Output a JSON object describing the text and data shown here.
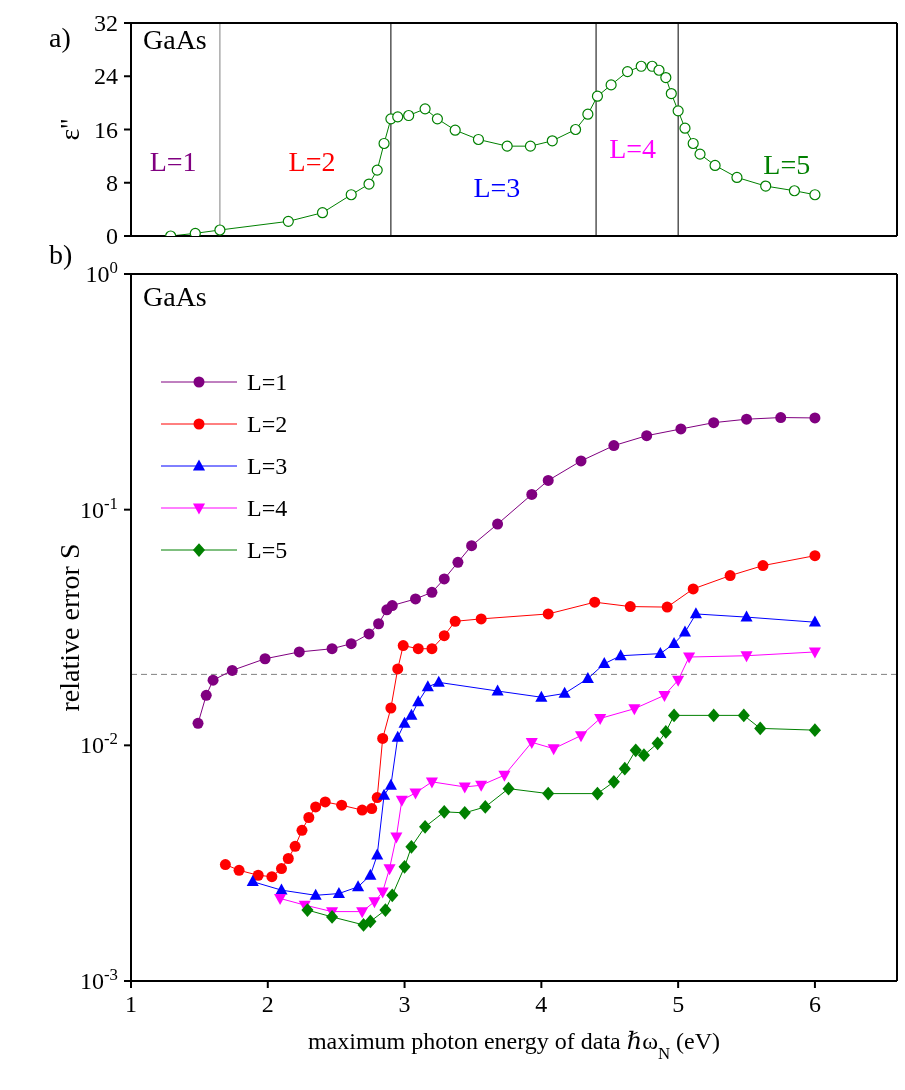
{
  "chart_data": [
    {
      "type": "line",
      "ylabel": "ε''",
      "marker": "circle",
      "tick_labels": "y",
      "xlim": [
        1,
        6.6
      ],
      "xticks": [
        1,
        2,
        3,
        4,
        5,
        6
      ],
      "ylim": [
        0,
        32
      ],
      "yticks": [
        0,
        8,
        16,
        24,
        32
      ],
      "annotations": [
        "a)",
        "GaAs",
        "L=1",
        "L=2",
        "L=3",
        "L=4",
        "L=5"
      ],
      "ref_lines": [
        {
          "axis": "x",
          "value": 1.65,
          "color": "#808080"
        },
        {
          "axis": "x",
          "value": 2.9,
          "color": "#000000"
        },
        {
          "axis": "x",
          "value": 4.4,
          "color": "#000000"
        },
        {
          "axis": "x",
          "value": 5.0,
          "color": "#000000"
        }
      ],
      "series": [
        {
          "color": "#008000",
          "x": [
            1.29,
            1.47,
            1.65,
            2.15,
            2.4,
            2.61,
            2.74,
            2.8,
            2.85,
            2.9,
            2.95,
            3.03,
            3.15,
            3.24,
            3.37,
            3.54,
            3.75,
            3.92,
            4.08,
            4.25,
            4.34,
            4.41,
            4.51,
            4.63,
            4.73,
            4.81,
            4.86,
            4.91,
            4.95,
            5.0,
            5.05,
            5.11,
            5.16,
            5.27,
            5.43,
            5.64,
            5.85,
            6.0
          ],
          "values": [
            0,
            0.4,
            0.9,
            2.2,
            3.5,
            6.2,
            7.8,
            9.9,
            13.9,
            17.6,
            17.9,
            18.1,
            19.1,
            17.6,
            15.9,
            14.5,
            13.5,
            13.5,
            14.3,
            16.0,
            18.3,
            21.0,
            22.7,
            24.7,
            25.5,
            25.5,
            24.9,
            23.8,
            21.4,
            18.8,
            16.2,
            13.9,
            12.3,
            10.6,
            8.8,
            7.5,
            6.8,
            6.2
          ]
        }
      ]
    },
    {
      "type": "line",
      "xlabel": "maximum photon energy of data ℏω$_{N}$ (eV)",
      "ylabel": "relative error S",
      "log": "y",
      "legend": "top left",
      "xlim": [
        1,
        6.6
      ],
      "xticks": [
        1,
        2,
        3,
        4,
        5,
        6
      ],
      "ylim": [
        0.001,
        1
      ],
      "yticks": [
        {
          "value": 0.001,
          "label": "10$^{-3}$"
        },
        {
          "value": 0.01,
          "label": "10$^{-2}$"
        },
        {
          "value": 0.1,
          "label": "10$^{-1}$"
        },
        {
          "value": 1,
          "label": "10$^{0}$"
        }
      ],
      "annotations": [
        "b)",
        "GaAs"
      ],
      "ref_lines": [
        {
          "axis": "y",
          "value": 0.02,
          "color": "#808080",
          "line_style": "dashed"
        }
      ],
      "series": [
        {
          "name": "L=1",
          "color": "#800080",
          "marker": "circle",
          "x": [
            1.49,
            1.55,
            1.6,
            1.74,
            1.98,
            2.23,
            2.47,
            2.61,
            2.74,
            2.81,
            2.87,
            2.91,
            3.08,
            3.2,
            3.29,
            3.39,
            3.49,
            3.68,
            3.93,
            4.05,
            4.29,
            4.53,
            4.77,
            5.02,
            5.26,
            5.5,
            5.75,
            6.0
          ],
          "values": [
            0.0124,
            0.0163,
            0.0189,
            0.0208,
            0.0233,
            0.0249,
            0.0257,
            0.027,
            0.0297,
            0.0328,
            0.0376,
            0.0392,
            0.0418,
            0.0446,
            0.0508,
            0.0598,
            0.0703,
            0.0869,
            0.116,
            0.133,
            0.161,
            0.187,
            0.206,
            0.22,
            0.234,
            0.242,
            0.246,
            0.245
          ]
        },
        {
          "name": "L=2",
          "color": "#ff0000",
          "marker": "circle",
          "x": [
            1.69,
            1.79,
            1.93,
            2.03,
            2.1,
            2.15,
            2.2,
            2.25,
            2.3,
            2.35,
            2.42,
            2.54,
            2.69,
            2.76,
            2.8,
            2.84,
            2.9,
            2.95,
            2.99,
            3.1,
            3.2,
            3.29,
            3.37,
            3.56,
            4.05,
            4.39,
            4.65,
            4.92,
            5.11,
            5.38,
            5.62,
            6.0
          ],
          "values": [
            0.00312,
            0.00295,
            0.00281,
            0.00277,
            0.003,
            0.00331,
            0.00373,
            0.00436,
            0.00494,
            0.00548,
            0.00575,
            0.00557,
            0.00531,
            0.00539,
            0.006,
            0.0107,
            0.0144,
            0.0211,
            0.0265,
            0.0257,
            0.0257,
            0.0292,
            0.0336,
            0.0344,
            0.0361,
            0.0405,
            0.0388,
            0.0386,
            0.0461,
            0.0525,
            0.0579,
            0.0638
          ]
        },
        {
          "name": "L=3",
          "color": "#0000ff",
          "marker": "triangle",
          "x": [
            1.89,
            2.1,
            2.35,
            2.52,
            2.66,
            2.75,
            2.8,
            2.85,
            2.9,
            2.95,
            3.0,
            3.05,
            3.1,
            3.17,
            3.25,
            3.68,
            4.0,
            4.17,
            4.34,
            4.46,
            4.58,
            4.87,
            4.97,
            5.05,
            5.13,
            5.5,
            6.0
          ],
          "values": [
            0.00264,
            0.00243,
            0.00231,
            0.00235,
            0.00251,
            0.00281,
            0.00342,
            0.00614,
            0.00677,
            0.0108,
            0.0124,
            0.0134,
            0.0153,
            0.0177,
            0.0185,
            0.017,
            0.016,
            0.0166,
            0.0192,
            0.0222,
            0.024,
            0.0245,
            0.027,
            0.0302,
            0.0361,
            0.035,
            0.0333
          ]
        },
        {
          "name": "L=4",
          "color": "#ff00ff",
          "marker": "triangle-down",
          "x": [
            2.09,
            2.27,
            2.47,
            2.69,
            2.78,
            2.84,
            2.89,
            2.94,
            2.98,
            3.08,
            3.2,
            3.44,
            3.56,
            3.73,
            3.93,
            4.09,
            4.29,
            4.43,
            4.68,
            4.9,
            5.0,
            5.08,
            5.5,
            6.0
          ],
          "values": [
            0.00224,
            0.0021,
            0.00197,
            0.00197,
            0.00217,
            0.00239,
            0.003,
            0.00409,
            0.00585,
            0.00628,
            0.007,
            0.00666,
            0.00677,
            0.00747,
            0.0103,
            0.00968,
            0.011,
            0.013,
            0.0143,
            0.0163,
            0.0189,
            0.0237,
            0.024,
            0.0249
          ]
        },
        {
          "name": "L=5",
          "color": "#008000",
          "marker": "diamond",
          "x": [
            2.29,
            2.47,
            2.7,
            2.75,
            2.86,
            2.91,
            3.0,
            3.05,
            3.15,
            3.29,
            3.44,
            3.59,
            3.76,
            4.05,
            4.41,
            4.53,
            4.61,
            4.69,
            4.75,
            4.85,
            4.91,
            4.97,
            5.26,
            5.48,
            5.6,
            6.0
          ],
          "values": [
            0.002,
            0.00187,
            0.00173,
            0.00179,
            0.002,
            0.00231,
            0.00305,
            0.00371,
            0.00451,
            0.00522,
            0.00517,
            0.00548,
            0.00655,
            0.00624,
            0.00624,
            0.007,
            0.00796,
            0.00953,
            0.00908,
            0.0102,
            0.0114,
            0.0134,
            0.0134,
            0.0134,
            0.0118,
            0.0116
          ]
        }
      ]
    }
  ]
}
